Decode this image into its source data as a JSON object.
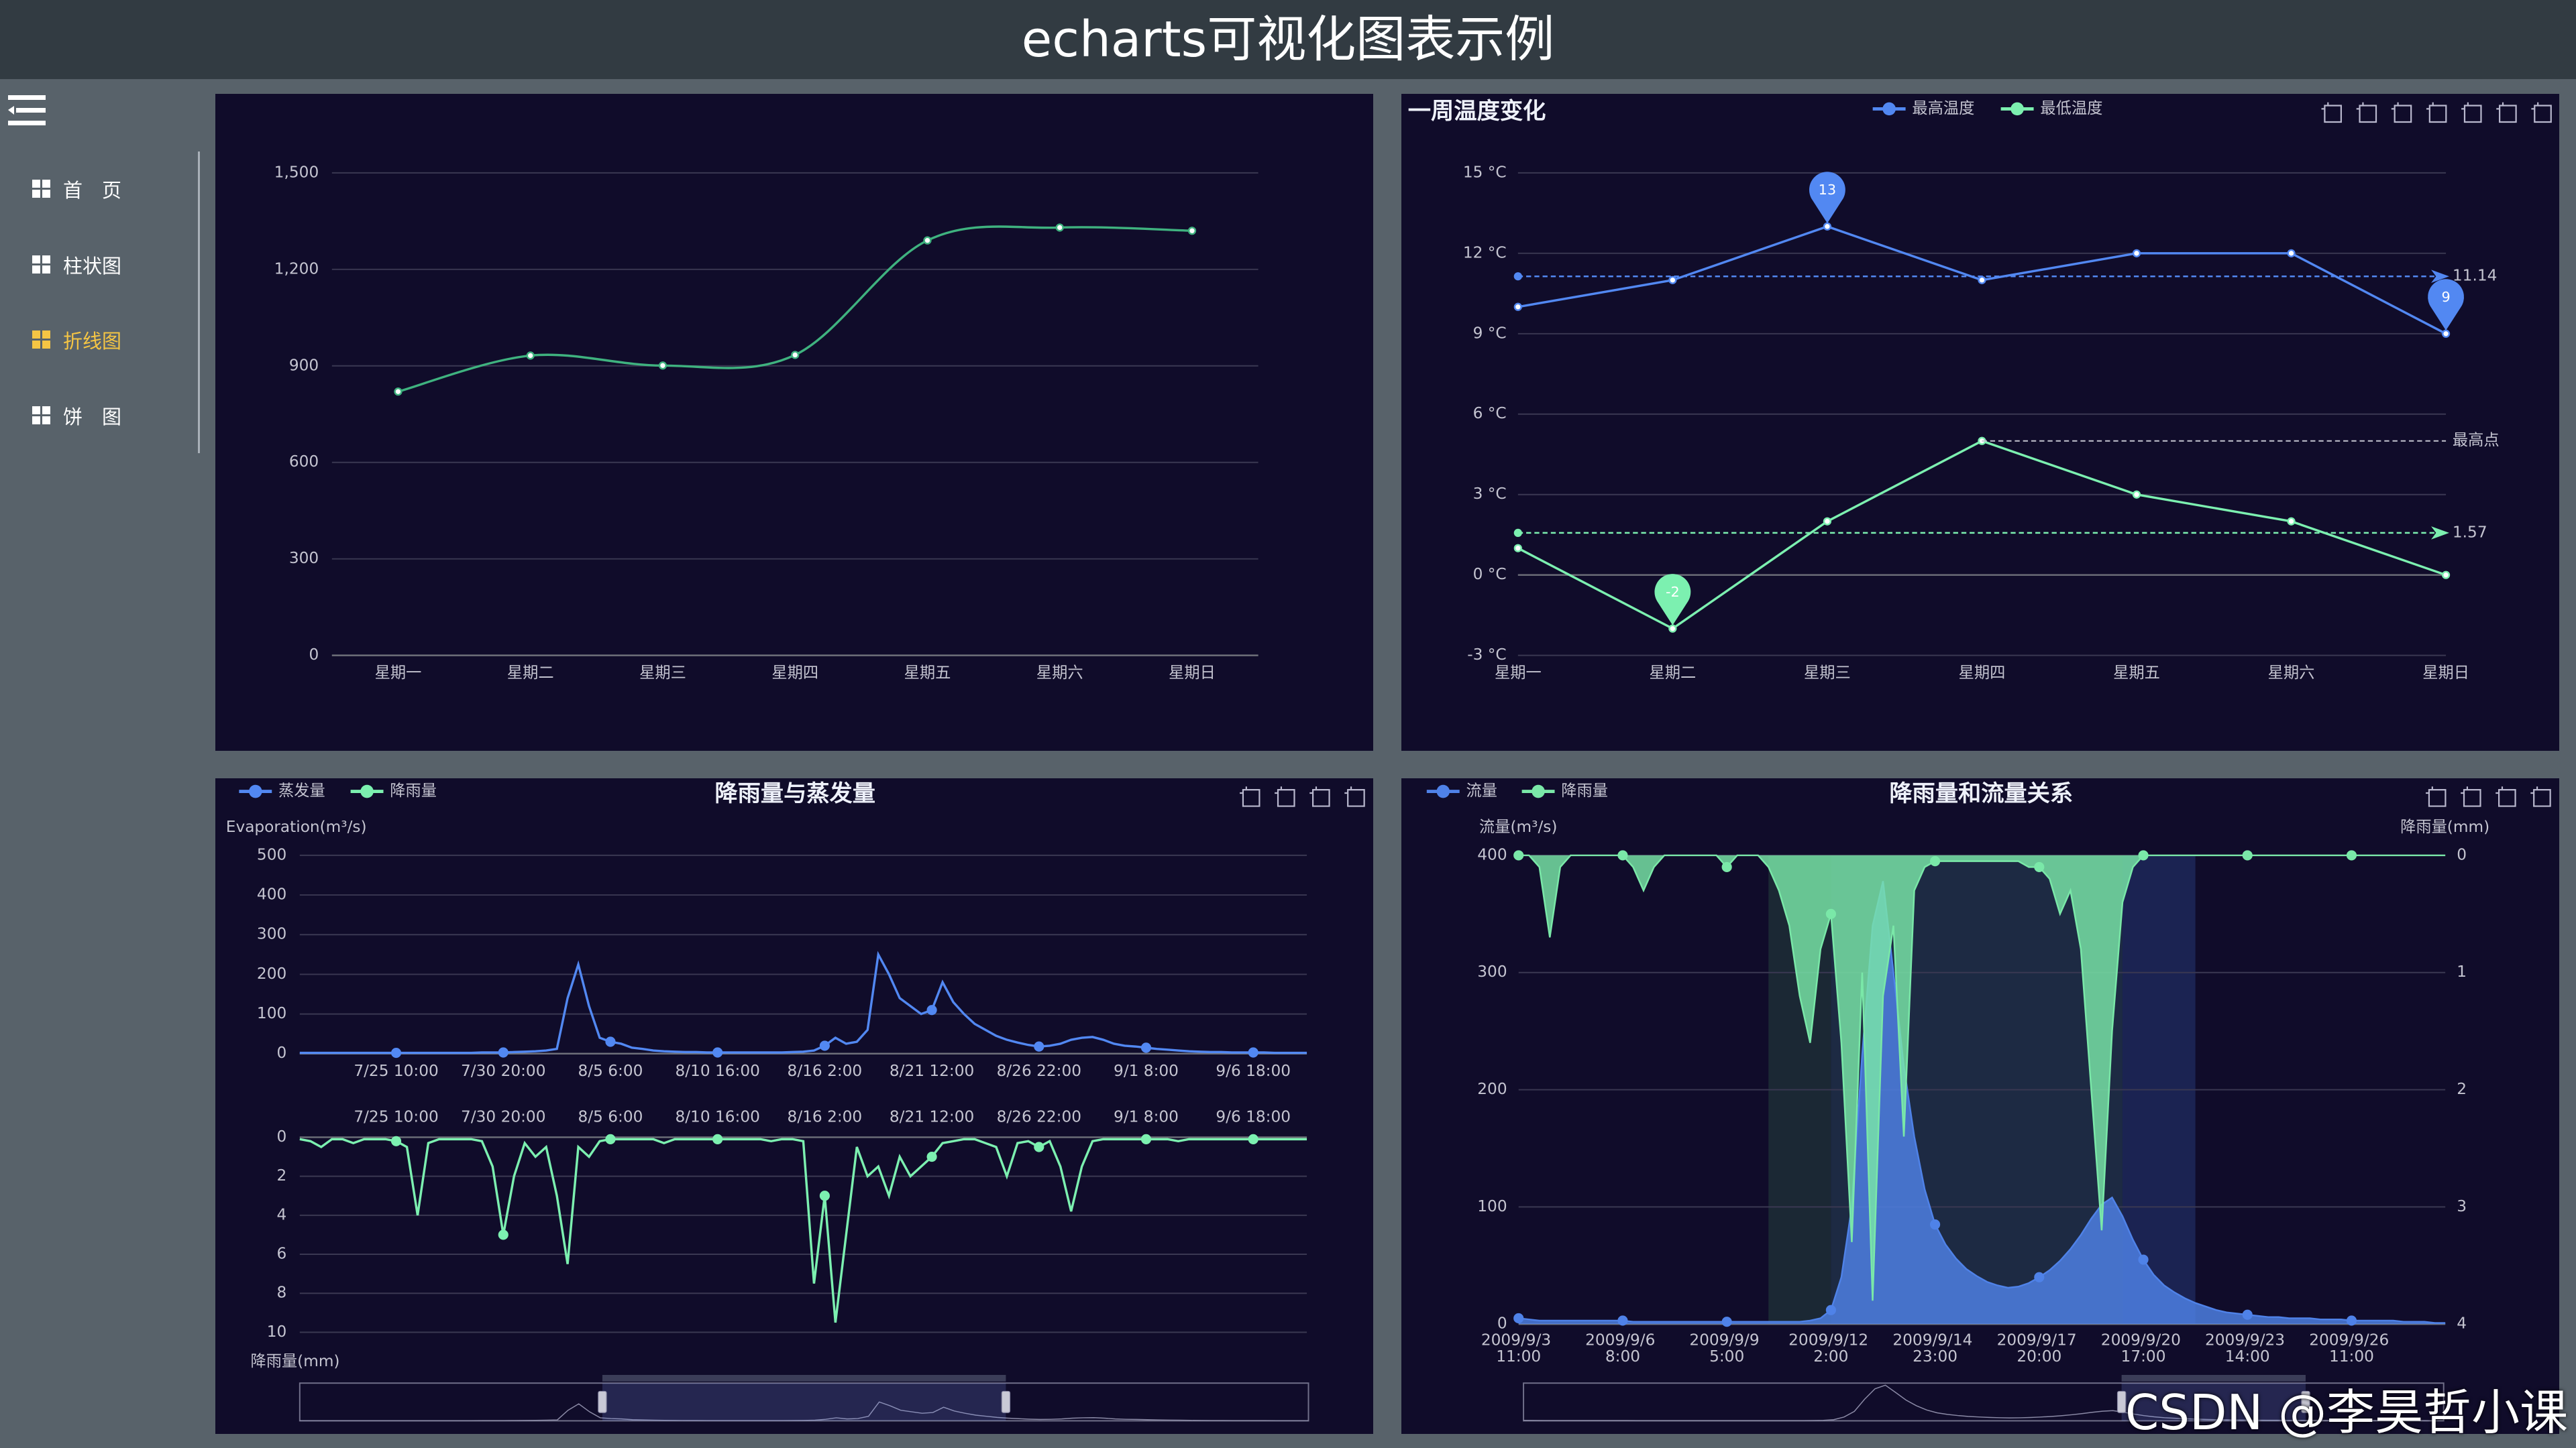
{
  "header": {
    "title": "echarts可视化图表示例"
  },
  "menu": [
    {
      "label": "首　页"
    },
    {
      "label": "柱状图"
    },
    {
      "label": "折线图",
      "active": true
    },
    {
      "label": "饼　图"
    }
  ],
  "watermark": "CSDN @李昊哲小课",
  "chart_data": [
    {
      "type": "line",
      "smooth": true,
      "categories": [
        "星期一",
        "星期二",
        "星期三",
        "星期四",
        "星期五",
        "星期六",
        "星期日"
      ],
      "values": [
        820,
        932,
        901,
        934,
        1290,
        1330,
        1320
      ],
      "color": "#3fb27f",
      "ylim": [
        0,
        1500
      ],
      "yticks": [
        0,
        300,
        600,
        900,
        {
          "value": 1200,
          "label": "1,200"
        },
        {
          "value": 1500,
          "label": "1,500"
        }
      ],
      "grid": true
    },
    {
      "type": "line",
      "title": "一周温度变化",
      "categories": [
        "星期一",
        "星期二",
        "星期三",
        "星期四",
        "星期五",
        "星期六",
        "星期日"
      ],
      "series": [
        {
          "name": "最高温度",
          "color": "#5288f2",
          "values": [
            10,
            11,
            13,
            11,
            12,
            12,
            9
          ],
          "mark_points": [
            "max",
            "min"
          ],
          "mark_line": {
            "average": 11.14
          }
        },
        {
          "name": "最低温度",
          "color": "#7cf0b0",
          "values": [
            1,
            -2,
            2,
            5,
            3,
            2,
            0
          ],
          "mark_points": [
            "min"
          ],
          "mark_line": {
            "average": 1.57,
            "max_label": "最高点"
          }
        }
      ],
      "ylim": [
        -3,
        15
      ],
      "yticks": [
        {
          "value": -3,
          "label": "-3 °C"
        },
        {
          "value": 0,
          "label": "0 °C"
        },
        {
          "value": 3,
          "label": "3 °C"
        },
        {
          "value": 6,
          "label": "6 °C"
        },
        {
          "value": 9,
          "label": "9 °C"
        },
        {
          "value": 12,
          "label": "12 °C"
        },
        {
          "value": 15,
          "label": "15 °C"
        }
      ],
      "grid": true,
      "legend": "top"
    },
    {
      "type": "line",
      "title": "降雨量与蒸发量",
      "categories": [
        null,
        null,
        null,
        null,
        null,
        null,
        null,
        null,
        null,
        "7/25 10:00",
        null,
        null,
        null,
        null,
        null,
        null,
        null,
        null,
        null,
        "7/30 20:00",
        null,
        null,
        null,
        null,
        null,
        null,
        null,
        null,
        null,
        "8/5 6:00",
        null,
        null,
        null,
        null,
        null,
        null,
        null,
        null,
        null,
        "8/10 16:00",
        null,
        null,
        null,
        null,
        null,
        null,
        null,
        null,
        null,
        "8/16 2:00",
        null,
        null,
        null,
        null,
        null,
        null,
        null,
        null,
        null,
        "8/21 12:00",
        null,
        null,
        null,
        null,
        null,
        null,
        null,
        null,
        null,
        "8/26 22:00",
        null,
        null,
        null,
        null,
        null,
        null,
        null,
        null,
        null,
        "9/1 8:00",
        null,
        null,
        null,
        null,
        null,
        null,
        null,
        null,
        null,
        "9/6 18:00",
        null,
        null,
        null,
        null,
        null
      ],
      "series": [
        {
          "name": "蒸发量",
          "color": "#5288f2",
          "axis": "y",
          "values": [
            2,
            2,
            2,
            2,
            2,
            2,
            2,
            2,
            2,
            2,
            2,
            2,
            2,
            2,
            2,
            2,
            2,
            3,
            3,
            3,
            4,
            5,
            6,
            8,
            12,
            140,
            225,
            120,
            40,
            30,
            25,
            15,
            12,
            8,
            6,
            5,
            4,
            4,
            3,
            3,
            3,
            3,
            3,
            3,
            3,
            3,
            4,
            5,
            8,
            20,
            40,
            25,
            30,
            60,
            250,
            200,
            140,
            120,
            100,
            110,
            180,
            130,
            100,
            75,
            60,
            45,
            35,
            28,
            22,
            18,
            20,
            25,
            35,
            40,
            42,
            35,
            25,
            20,
            18,
            15,
            12,
            10,
            8,
            6,
            5,
            4,
            4,
            3,
            3,
            3,
            3,
            2,
            2,
            2,
            2
          ]
        },
        {
          "name": "降雨量",
          "color": "#7cf0b0",
          "axis": "y2",
          "values": [
            0.1,
            0.2,
            0.5,
            0.1,
            0.1,
            0.3,
            0.1,
            0.1,
            0.1,
            0.2,
            0.5,
            4,
            0.3,
            0.1,
            0.1,
            0.1,
            0.1,
            0.2,
            1.5,
            5,
            2,
            0.3,
            1,
            0.5,
            3,
            6.5,
            0.5,
            1,
            0.2,
            0.1,
            0.1,
            0.1,
            0.1,
            0.1,
            0.3,
            0.1,
            0.1,
            0.1,
            0.1,
            0.1,
            0.1,
            0.1,
            0.1,
            0.1,
            0.2,
            0.1,
            0.1,
            0.2,
            7.5,
            3,
            9.5,
            5,
            0.5,
            2,
            1.5,
            3,
            1,
            2,
            1.5,
            1,
            0.3,
            0.2,
            0.1,
            0.1,
            0.3,
            0.5,
            2,
            0.3,
            0.2,
            0.5,
            0.2,
            1.5,
            3.8,
            1.5,
            0.2,
            0.1,
            0.1,
            0.1,
            0.1,
            0.1,
            0.1,
            0.1,
            0.2,
            0.1,
            0.1,
            0.1,
            0.1,
            0.1,
            0.1,
            0.1,
            0.1,
            0.1,
            0.1,
            0.1,
            0.1
          ]
        }
      ],
      "ylabel": "Evaporation(m³/s)",
      "y2label": "降雨量(mm)",
      "ylim": [
        0,
        500
      ],
      "yticks": [
        0,
        100,
        200,
        300,
        400,
        500
      ],
      "y2lim": [
        10,
        0
      ],
      "y2ticks": [
        0,
        2,
        4,
        6,
        8,
        10
      ],
      "grid": true,
      "legend": "top-left",
      "datazoom": [
        30,
        70
      ]
    },
    {
      "type": "area",
      "title": "降雨量和流量关系",
      "categories": [
        "2009/9/3 11:00",
        null,
        null,
        null,
        null,
        null,
        null,
        null,
        null,
        null,
        "2009/9/6 8:00",
        null,
        null,
        null,
        null,
        null,
        null,
        null,
        null,
        null,
        "2009/9/9 5:00",
        null,
        null,
        null,
        null,
        null,
        null,
        null,
        null,
        null,
        "2009/9/12 2:00",
        null,
        null,
        null,
        null,
        null,
        null,
        null,
        null,
        null,
        "2009/9/14 23:00",
        null,
        null,
        null,
        null,
        null,
        null,
        null,
        null,
        null,
        "2009/9/17 20:00",
        null,
        null,
        null,
        null,
        null,
        null,
        null,
        null,
        null,
        "2009/9/20 17:00",
        null,
        null,
        null,
        null,
        null,
        null,
        null,
        null,
        null,
        "2009/9/23 14:00",
        null,
        null,
        null,
        null,
        null,
        null,
        null,
        null,
        null,
        "2009/9/26 11:00",
        null,
        null,
        null,
        null,
        null,
        null,
        null,
        null,
        null
      ],
      "series": [
        {
          "name": "流量",
          "color": "#4f82e8",
          "axis": "y",
          "values": [
            5,
            4,
            3,
            3,
            3,
            3,
            3,
            3,
            3,
            3,
            3,
            2,
            2,
            2,
            2,
            2,
            2,
            2,
            2,
            2,
            2,
            2,
            2,
            2,
            2,
            2,
            2,
            2,
            3,
            5,
            12,
            40,
            100,
            230,
            340,
            378,
            300,
            220,
            160,
            115,
            85,
            68,
            56,
            47,
            41,
            36,
            33,
            31,
            32,
            35,
            40,
            46,
            54,
            64,
            76,
            90,
            102,
            108,
            92,
            72,
            55,
            42,
            33,
            27,
            22,
            18,
            15,
            12,
            10,
            9,
            8,
            7,
            6,
            6,
            5,
            5,
            5,
            4,
            4,
            4,
            3,
            3,
            3,
            3,
            3,
            2,
            2,
            2,
            1,
            1
          ]
        },
        {
          "name": "降雨量",
          "color": "#7ae8a8",
          "axis": "y2",
          "values": [
            0,
            0,
            0.1,
            0.7,
            0.1,
            0,
            0,
            0,
            0,
            0,
            0,
            0.1,
            0.3,
            0.1,
            0,
            0,
            0,
            0,
            0,
            0,
            0.1,
            0,
            0,
            0,
            0.1,
            0.3,
            0.6,
            1.2,
            1.6,
            0.8,
            0.5,
            1.6,
            3.3,
            1.0,
            3.8,
            1.2,
            0.6,
            2.4,
            0.3,
            0.1,
            0.05,
            0.05,
            0.05,
            0.05,
            0.05,
            0.05,
            0.05,
            0.05,
            0.05,
            0.1,
            0.1,
            0.2,
            0.5,
            0.3,
            0.8,
            2.0,
            3.2,
            1.5,
            0.4,
            0.1,
            0,
            0,
            0,
            0,
            0,
            0,
            0,
            0,
            0,
            0,
            0,
            0,
            0,
            0,
            0,
            0,
            0,
            0,
            0,
            0,
            0,
            0,
            0,
            0,
            0,
            0,
            0,
            0,
            0,
            0
          ]
        }
      ],
      "ylabel": "流量(m³/s)",
      "y2label": "降雨量(mm)",
      "ylim": [
        0,
        400
      ],
      "yticks": [
        0,
        100,
        200,
        300,
        400
      ],
      "y2lim": [
        4,
        0
      ],
      "y2ticks": [
        0,
        1,
        2,
        3,
        4
      ],
      "grid": true,
      "legend": "top-left",
      "mark_areas": [
        {
          "from": 24,
          "to": 30,
          "color": "#1b2834"
        },
        {
          "from": 30,
          "to": 58,
          "color": "#1d2a43"
        },
        {
          "from": 58,
          "to": 65,
          "color": "#1b2352"
        }
      ],
      "datazoom": [
        65,
        85
      ]
    }
  ]
}
